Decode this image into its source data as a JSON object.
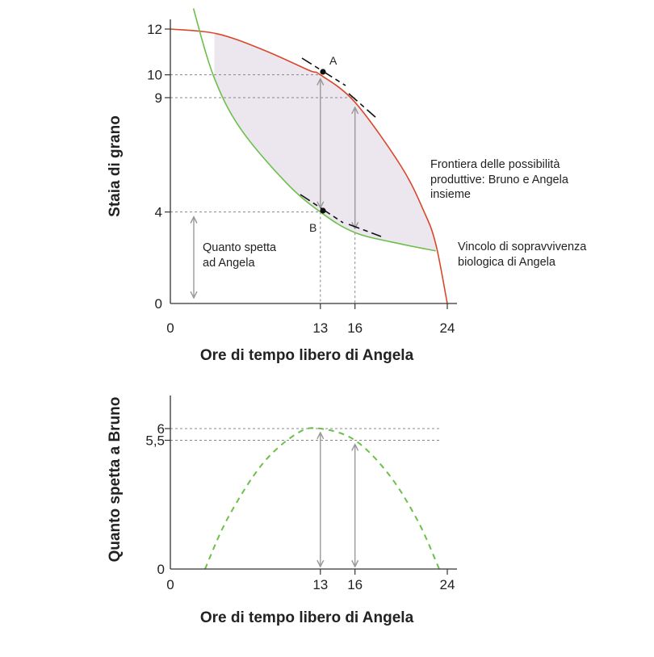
{
  "colors": {
    "frontier": "#d9472b",
    "survival": "#6cc04a",
    "surplus_fill": "#ece6ee",
    "bruno_curve": "#6cc04a",
    "guide": "#888888",
    "arrow": "#999999",
    "axis": "#333333",
    "tangent": "#111111"
  },
  "chart_data": [
    {
      "type": "line",
      "xlabel": "Ore di tempo libero di Angela",
      "ylabel": "Staia di grano",
      "xlim": [
        0,
        24
      ],
      "ylim": [
        0,
        12
      ],
      "x_ticks": [
        "0",
        "13",
        "16",
        "24"
      ],
      "y_ticks": [
        "0",
        "4",
        "9",
        "10",
        "12"
      ],
      "series": [
        {
          "name": "Frontiera delle possibilità produttive: Bruno e Angela insieme",
          "points": [
            [
              0,
              12
            ],
            [
              4,
              11.8
            ],
            [
              8,
              11.1
            ],
            [
              12,
              10.2
            ],
            [
              13,
              10
            ],
            [
              16,
              8.8
            ],
            [
              20,
              6
            ],
            [
              22,
              4
            ],
            [
              23,
              2.6
            ],
            [
              24,
              0
            ]
          ]
        },
        {
          "name": "Vincolo di sopravvivenza biologica di Angela",
          "points": [
            [
              2,
              12.9
            ],
            [
              3.7,
              10
            ],
            [
              6,
              7.7
            ],
            [
              10,
              5.3
            ],
            [
              13,
              4
            ],
            [
              16,
              3.1
            ],
            [
              20,
              2.6
            ],
            [
              23,
              2.3
            ]
          ]
        }
      ],
      "points": [
        {
          "label": "A",
          "x": 13,
          "y": 10
        },
        {
          "label": "B",
          "x": 13,
          "y": 4
        }
      ],
      "annotations": {
        "frontier": [
          "Frontiera delle possibilità",
          "produttive: Bruno e Angela",
          "insieme"
        ],
        "survival": [
          "Vincolo di sopravvivenza",
          "biologica di Angela"
        ],
        "angela_share": [
          "Quanto spetta",
          "ad Angela"
        ]
      }
    },
    {
      "type": "line",
      "xlabel": "Ore di tempo libero di Angela",
      "ylabel": "Quanto spetta a Bruno",
      "xlim": [
        0,
        24
      ],
      "x_ticks": [
        "0",
        "13",
        "16",
        "24"
      ],
      "y_ticks": [
        "0",
        "5,5",
        "6"
      ],
      "series": [
        {
          "points": [
            [
              3,
              0
            ],
            [
              5,
              2.2
            ],
            [
              8,
              4.5
            ],
            [
              11,
              5.8
            ],
            [
              13,
              6
            ],
            [
              16,
              5.5
            ],
            [
              19,
              4
            ],
            [
              21.5,
              2
            ],
            [
              23.3,
              0
            ]
          ]
        }
      ]
    }
  ]
}
